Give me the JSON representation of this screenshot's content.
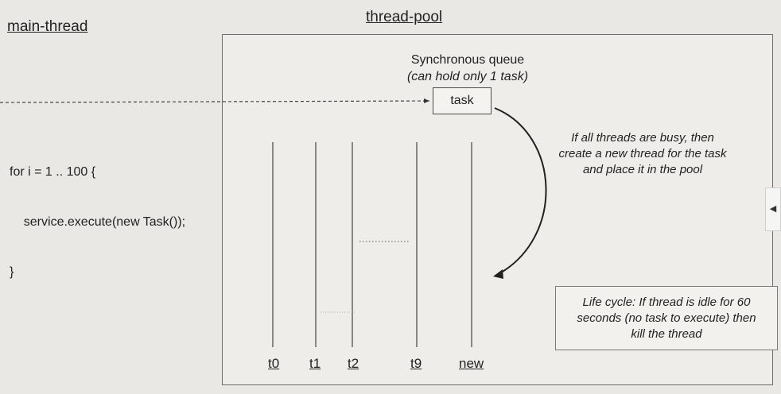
{
  "titles": {
    "main_thread": "main-thread",
    "thread_pool": "thread-pool"
  },
  "queue": {
    "title": "Synchronous queue",
    "subtitle": "(can hold only 1 task)",
    "task_label": "task"
  },
  "code": {
    "line1": "for i = 1 .. 100 {",
    "line2": "    service.execute(new Task());",
    "line3": "}"
  },
  "busy_note": {
    "line1": "If all threads are busy, then",
    "line2": "create a new thread for the task",
    "line3": "and place it in the pool"
  },
  "life_cycle": {
    "line1": "Life cycle: If thread is idle for 60",
    "line2": "seconds (no task to execute) then",
    "line3": "kill the thread"
  },
  "threads": [
    "t0",
    "t1",
    "t2",
    "t9",
    "new"
  ],
  "icons": {
    "side_tab": "collapse-arrow-icon"
  }
}
